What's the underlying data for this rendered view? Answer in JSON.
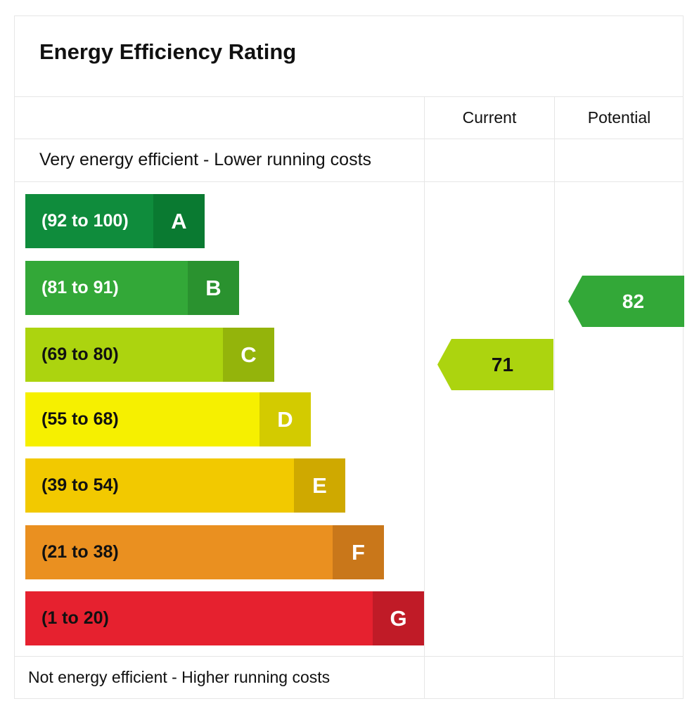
{
  "title": "Energy Efficiency Rating",
  "headers": {
    "current": "Current",
    "potential": "Potential"
  },
  "top_note": "Very energy efficient - Lower running costs",
  "bottom_note": "Not energy efficient - Higher running costs",
  "chart_data": {
    "type": "bar",
    "title": "Energy Efficiency Rating",
    "bands": [
      {
        "letter": "A",
        "range": "(92 to 100)",
        "min": 92,
        "max": 100,
        "color": "#0f8c3c",
        "letter_color": "#0a7a31",
        "text_color": "#ffffff",
        "letter_text_color": "#ffffff"
      },
      {
        "letter": "B",
        "range": "(81 to 91)",
        "min": 81,
        "max": 91,
        "color": "#33a838",
        "letter_color": "#2a922f",
        "text_color": "#ffffff",
        "letter_text_color": "#ffffff"
      },
      {
        "letter": "C",
        "range": "(69 to 80)",
        "min": 69,
        "max": 80,
        "color": "#acd40f",
        "letter_color": "#94b40b",
        "text_color": "#111111",
        "letter_text_color": "#ffffff"
      },
      {
        "letter": "D",
        "range": "(55 to 68)",
        "min": 55,
        "max": 68,
        "color": "#f6f000",
        "letter_color": "#d3cb00",
        "text_color": "#111111",
        "letter_text_color": "#ffffff"
      },
      {
        "letter": "E",
        "range": "(39 to 54)",
        "min": 39,
        "max": 54,
        "color": "#f2c900",
        "letter_color": "#cfa900",
        "text_color": "#111111",
        "letter_text_color": "#ffffff"
      },
      {
        "letter": "F",
        "range": "(21 to 38)",
        "min": 21,
        "max": 38,
        "color": "#ea9020",
        "letter_color": "#c9771a",
        "text_color": "#111111",
        "letter_text_color": "#ffffff"
      },
      {
        "letter": "G",
        "range": "(1 to 20)",
        "min": 1,
        "max": 20,
        "color": "#e6212f",
        "letter_color": "#c01b27",
        "text_color": "#111111",
        "letter_text_color": "#ffffff"
      }
    ],
    "current": {
      "value": 71,
      "band": "C",
      "color": "#acd40f",
      "text_color": "#111111"
    },
    "potential": {
      "value": 82,
      "band": "B",
      "color": "#33a838",
      "text_color": "#ffffff"
    }
  }
}
